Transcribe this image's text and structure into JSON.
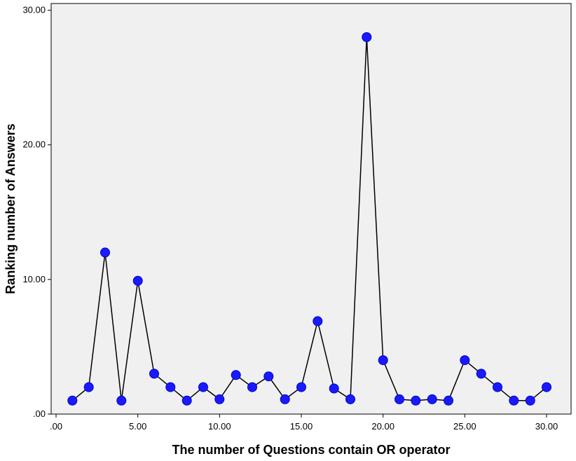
{
  "chart_data": {
    "type": "line",
    "title": "",
    "xlabel": "The number of Questions contain OR operator",
    "ylabel": "Ranking number of Answers",
    "xlim": [
      -0.3,
      31.5
    ],
    "ylim": [
      0,
      30.5
    ],
    "x_ticks": [
      0,
      5,
      10,
      15,
      20,
      25,
      30
    ],
    "x_tick_labels": [
      ".00",
      "5.00",
      "10.00",
      "15.00",
      "20.00",
      "25.00",
      "30.00"
    ],
    "y_ticks": [
      0,
      10,
      20,
      30
    ],
    "y_tick_labels": [
      ".00",
      "10.00",
      "20.00",
      "30.00"
    ],
    "grid": false,
    "colors": {
      "plot_background": "#f0f0f0",
      "line": "#000000",
      "marker_fill": "#1a1aff",
      "marker_stroke": "#0000cc"
    },
    "series": [
      {
        "x": [
          1,
          2,
          3,
          4,
          5,
          6,
          7,
          8,
          9,
          10,
          11,
          12,
          13,
          14,
          15,
          16,
          17,
          18,
          19,
          20,
          21,
          22,
          23,
          24,
          25,
          26,
          27,
          28,
          29,
          30
        ],
        "values": [
          1,
          2,
          12,
          1,
          9.9,
          3,
          2,
          1,
          2,
          1.1,
          2.9,
          2,
          2.8,
          1.1,
          2,
          6.9,
          1.9,
          1.1,
          28,
          4,
          1.1,
          1,
          1.1,
          1,
          4,
          3,
          2,
          1,
          1,
          2
        ]
      }
    ]
  }
}
